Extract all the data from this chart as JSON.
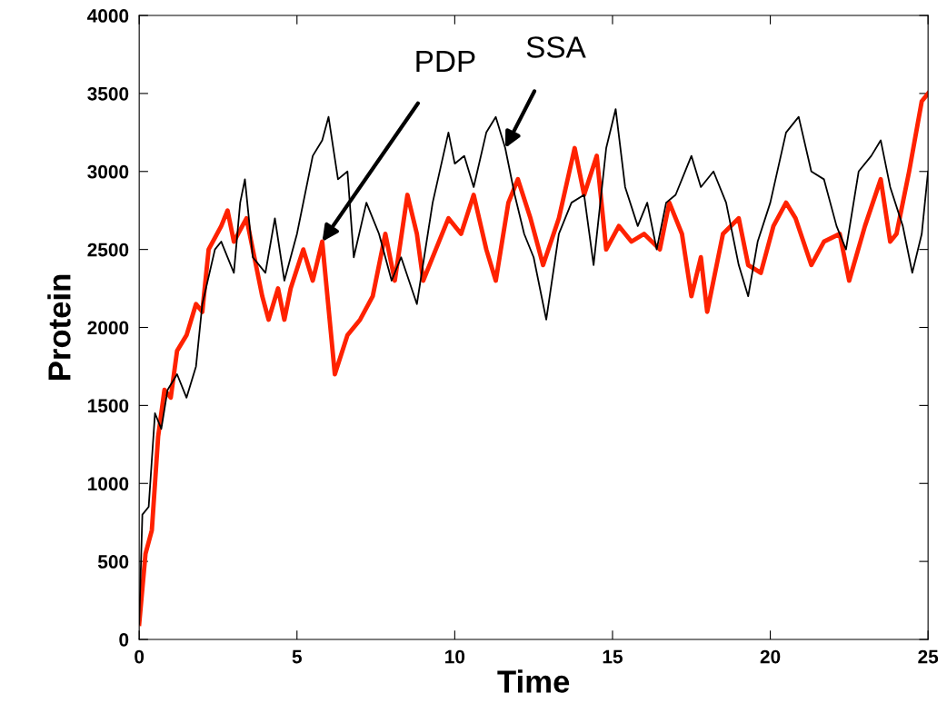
{
  "chart_data": {
    "type": "line",
    "xlabel": "Time",
    "ylabel": "Protein",
    "xlim": [
      0,
      25
    ],
    "ylim": [
      0,
      4000
    ],
    "xticks": [
      0,
      5,
      10,
      15,
      20,
      25
    ],
    "yticks": [
      0,
      500,
      1000,
      1500,
      2000,
      2500,
      3000,
      3500,
      4000
    ],
    "grid": false,
    "marker": "none",
    "line_style": "solid",
    "series": [
      {
        "color": "#000000",
        "x": [
          0,
          0.1,
          0.3,
          0.5,
          0.7,
          0.9,
          1.2,
          1.5,
          1.8,
          2.0,
          2.4,
          2.6,
          3.0,
          3.2,
          3.35,
          3.6,
          4.0,
          4.3,
          4.6,
          5.0,
          5.5,
          5.8,
          6.0,
          6.3,
          6.6,
          6.8,
          7.2,
          7.6,
          8.0,
          8.3,
          8.8,
          9.3,
          9.8,
          10.0,
          10.3,
          10.6,
          11.0,
          11.3,
          11.6,
          11.9,
          12.2,
          12.5,
          12.9,
          13.3,
          13.7,
          14.1,
          14.4,
          14.8,
          15.1,
          15.4,
          15.8,
          16.1,
          16.4,
          16.7,
          17.0,
          17.5,
          17.8,
          18.2,
          18.6,
          19.0,
          19.3,
          19.6,
          20.0,
          20.5,
          20.9,
          21.3,
          21.7,
          22.1,
          22.4,
          22.8,
          23.2,
          23.5,
          23.8,
          24.2,
          24.5,
          24.8,
          25.0
        ],
        "values": [
          100,
          800,
          850,
          1450,
          1350,
          1600,
          1700,
          1550,
          1750,
          2150,
          2500,
          2550,
          2350,
          2800,
          2950,
          2450,
          2350,
          2700,
          2300,
          2600,
          3100,
          3200,
          3350,
          2950,
          3000,
          2450,
          2800,
          2600,
          2300,
          2450,
          2150,
          2800,
          3250,
          3050,
          3100,
          2900,
          3250,
          3350,
          3150,
          2850,
          2600,
          2450,
          2050,
          2600,
          2800,
          2850,
          2400,
          3150,
          3400,
          2900,
          2650,
          2800,
          2500,
          2800,
          2850,
          3100,
          2900,
          3000,
          2800,
          2400,
          2200,
          2550,
          2800,
          3250,
          3350,
          3000,
          2950,
          2650,
          2500,
          3000,
          3100,
          3200,
          2900,
          2650,
          2350,
          2600,
          3000
        ]
      },
      {
        "color": "#ff2200",
        "x": [
          0,
          0.2,
          0.4,
          0.6,
          0.8,
          1.0,
          1.2,
          1.5,
          1.8,
          2.0,
          2.2,
          2.6,
          2.8,
          3.0,
          3.4,
          3.6,
          3.9,
          4.1,
          4.4,
          4.6,
          4.8,
          5.2,
          5.5,
          5.8,
          6.2,
          6.6,
          7.0,
          7.4,
          7.8,
          8.1,
          8.5,
          8.8,
          9.0,
          9.4,
          9.8,
          10.2,
          10.6,
          11.0,
          11.3,
          11.7,
          12.0,
          12.4,
          12.8,
          13.3,
          13.8,
          14.1,
          14.5,
          14.8,
          15.2,
          15.6,
          16.0,
          16.5,
          16.8,
          17.2,
          17.5,
          17.8,
          18.0,
          18.5,
          19.0,
          19.3,
          19.7,
          20.1,
          20.5,
          20.8,
          21.3,
          21.7,
          22.2,
          22.5,
          23.0,
          23.5,
          23.8,
          24.0,
          24.4,
          24.8,
          25.0
        ],
        "values": [
          100,
          550,
          700,
          1300,
          1600,
          1550,
          1850,
          1950,
          2150,
          2100,
          2500,
          2650,
          2750,
          2550,
          2700,
          2500,
          2200,
          2050,
          2250,
          2050,
          2250,
          2500,
          2300,
          2550,
          1700,
          1950,
          2050,
          2200,
          2600,
          2300,
          2850,
          2600,
          2300,
          2500,
          2700,
          2600,
          2850,
          2500,
          2300,
          2800,
          2950,
          2700,
          2400,
          2700,
          3150,
          2850,
          3100,
          2500,
          2650,
          2550,
          2600,
          2500,
          2800,
          2600,
          2200,
          2450,
          2100,
          2600,
          2700,
          2400,
          2350,
          2650,
          2800,
          2700,
          2400,
          2550,
          2600,
          2300,
          2650,
          2950,
          2550,
          2600,
          3000,
          3450,
          3500
        ]
      }
    ],
    "annotations": [
      {
        "text": "PDP",
        "x": 5.8,
        "y": 2550
      },
      {
        "text": "SSA",
        "x": 11.6,
        "y": 3150
      }
    ]
  }
}
